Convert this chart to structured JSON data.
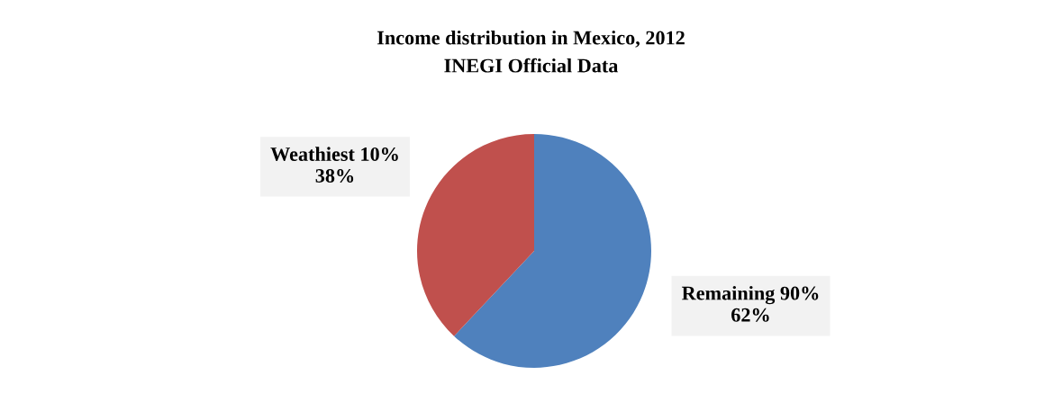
{
  "chart_data": {
    "type": "pie",
    "title": "Income distribution in Mexico, 2012",
    "subtitle": "INEGI Official Data",
    "categories": [
      "Remaining 90%",
      "Weathiest 10%"
    ],
    "values": [
      62,
      38
    ],
    "value_labels": [
      "62%",
      "38%"
    ],
    "colors": [
      "#4f81bd",
      "#c0504d"
    ],
    "legend": false
  }
}
